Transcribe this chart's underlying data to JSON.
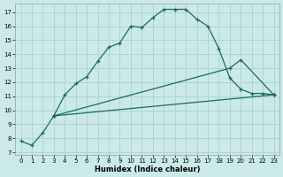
{
  "title": "",
  "xlabel": "Humidex (Indice chaleur)",
  "ylabel": "",
  "bg_color": "#cce9e9",
  "grid_color": "#aed4d4",
  "line_color": "#1a6b5a",
  "x_ticks": [
    0,
    1,
    2,
    3,
    4,
    5,
    6,
    7,
    8,
    9,
    10,
    11,
    12,
    13,
    14,
    15,
    16,
    17,
    18,
    19,
    20,
    21,
    22,
    23
  ],
  "y_ticks": [
    7,
    8,
    9,
    10,
    11,
    12,
    13,
    14,
    15,
    16,
    17
  ],
  "ylim": [
    6.8,
    17.6
  ],
  "xlim": [
    -0.5,
    23.5
  ],
  "series": [
    {
      "x": [
        0,
        1,
        2,
        3,
        4,
        5,
        6,
        7,
        8,
        9,
        10,
        11,
        12,
        13,
        14,
        15,
        16,
        17,
        18,
        19,
        20,
        21,
        22,
        23
      ],
      "y": [
        7.8,
        7.5,
        8.4,
        9.6,
        11.1,
        11.9,
        12.4,
        13.5,
        14.5,
        14.8,
        16.0,
        15.9,
        16.6,
        17.2,
        17.2,
        17.2,
        16.5,
        16.0,
        14.4,
        12.3,
        11.5,
        11.2,
        11.2,
        11.1
      ]
    },
    {
      "x": [
        3,
        19,
        20,
        23
      ],
      "y": [
        9.6,
        13.0,
        13.6,
        11.1
      ]
    },
    {
      "x": [
        3,
        23
      ],
      "y": [
        9.6,
        11.1
      ]
    }
  ]
}
